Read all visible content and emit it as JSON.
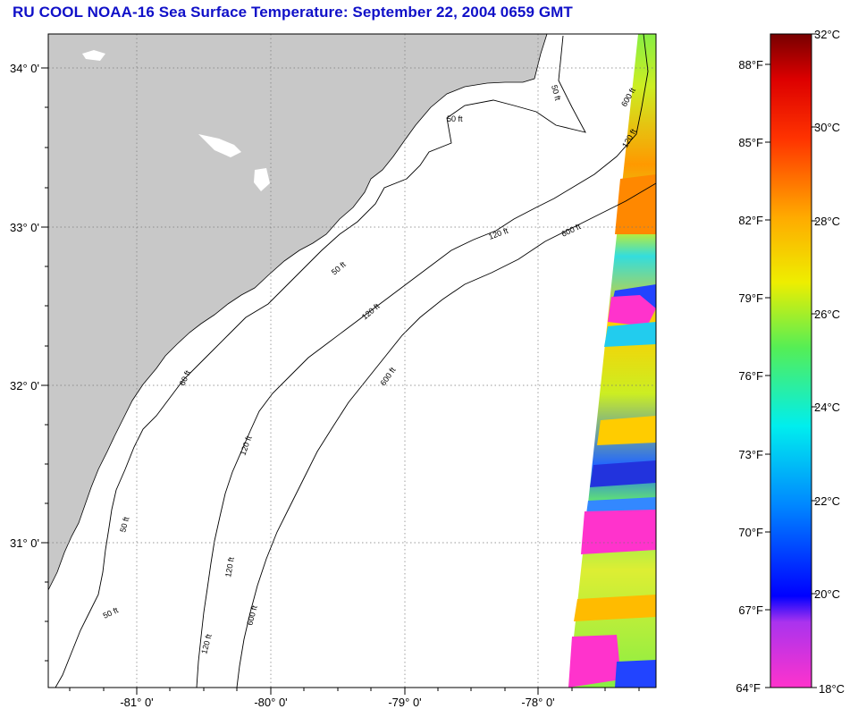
{
  "title": "RU COOL  NOAA-16  Sea Surface Temperature:  September 22, 2004 0659 GMT",
  "map": {
    "lat_labels": [
      "34° 0'",
      "33° 0'",
      "32° 0'",
      "31° 0'"
    ],
    "lon_labels": [
      "-81° 0'",
      "-80° 0'",
      "-79° 0'",
      "-78° 0'"
    ],
    "contour_labels": [
      "50 ft",
      "50 ft",
      "50 ft",
      "60 ft",
      "50 ft",
      "50 ft",
      "120 ft",
      "120 ft",
      "120 ft",
      "120 ft",
      "120 ft",
      "600 ft",
      "600 ft",
      "600 ft",
      "120 ft",
      "600 ft"
    ],
    "land_color": "#c8c8c8",
    "ocean_color": "#ffffff"
  },
  "colorbar": {
    "fahrenheit_labels": [
      "88°F",
      "85°F",
      "82°F",
      "79°F",
      "76°F",
      "73°F",
      "70°F",
      "67°F",
      "64°F"
    ],
    "celsius_labels": [
      "32°C",
      "30°C",
      "28°C",
      "26°C",
      "24°C",
      "22°C",
      "20°C",
      "18°C"
    ],
    "range_celsius": [
      18,
      32
    ],
    "colors": [
      "#ff33cc",
      "#9933ff",
      "#0000ff",
      "#0088ff",
      "#00ddee",
      "#00ee99",
      "#77ee33",
      "#ccee00",
      "#ffff00",
      "#ffbb00",
      "#ff8800",
      "#ff3300",
      "#ee0000",
      "#880000"
    ]
  }
}
